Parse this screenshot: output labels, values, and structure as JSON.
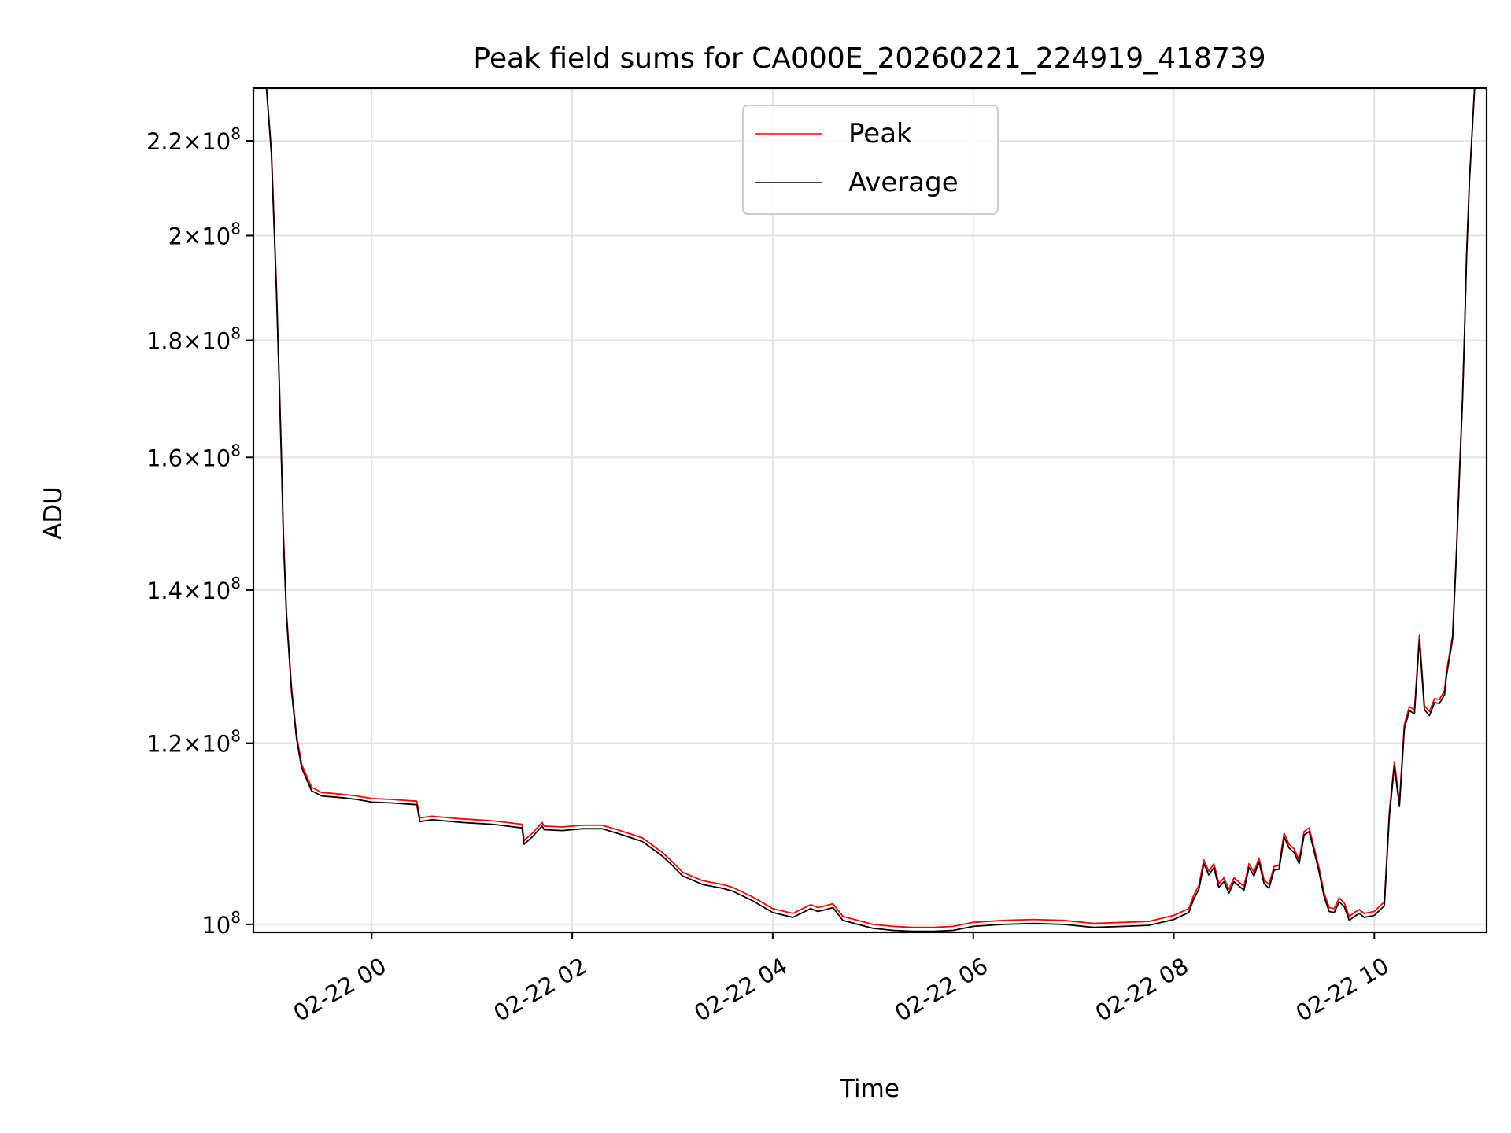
{
  "chart_data": {
    "type": "line",
    "title": "Peak field sums for CA000E_20260221_224919_418739",
    "xlabel": "Time",
    "ylabel": "ADU",
    "x_unit": "hours since 02-22 00:00",
    "xlim": [
      -1.18,
      11.12
    ],
    "ylim": [
      99200000,
      232000000
    ],
    "y_scale": "log",
    "grid": true,
    "legend_position": "upper center",
    "x_ticks": [
      {
        "value": 0,
        "label": "02-22 00"
      },
      {
        "value": 2,
        "label": "02-22 02"
      },
      {
        "value": 4,
        "label": "02-22 04"
      },
      {
        "value": 6,
        "label": "02-22 06"
      },
      {
        "value": 8,
        "label": "02-22 08"
      },
      {
        "value": 10,
        "label": "02-22 10"
      }
    ],
    "y_ticks": [
      {
        "value": 100000000,
        "mantissa": "",
        "exponent": "8"
      },
      {
        "value": 120000000,
        "mantissa": "1.2",
        "exponent": "8"
      },
      {
        "value": 140000000,
        "mantissa": "1.4",
        "exponent": "8"
      },
      {
        "value": 160000000,
        "mantissa": "1.6",
        "exponent": "8"
      },
      {
        "value": 180000000,
        "mantissa": "1.8",
        "exponent": "8"
      },
      {
        "value": 200000000,
        "mantissa": "2",
        "exponent": "8"
      },
      {
        "value": 220000000,
        "mantissa": "2.2",
        "exponent": "8"
      }
    ],
    "series": [
      {
        "name": "Peak",
        "color": "#ff0000",
        "x": [
          -1.18,
          -1.05,
          -1.0,
          -0.95,
          -0.92,
          -0.9,
          -0.88,
          -0.85,
          -0.8,
          -0.75,
          -0.7,
          -0.6,
          -0.5,
          -0.4,
          -0.3,
          -0.15,
          0.0,
          0.2,
          0.45,
          0.48,
          0.6,
          0.9,
          1.2,
          1.5,
          1.52,
          1.6,
          1.7,
          1.72,
          1.9,
          2.1,
          2.3,
          2.45,
          2.7,
          2.9,
          3.0,
          3.1,
          3.3,
          3.5,
          3.6,
          3.8,
          4.0,
          4.2,
          4.38,
          4.45,
          4.6,
          4.7,
          4.85,
          5.0,
          5.2,
          5.4,
          5.6,
          5.8,
          6.0,
          6.3,
          6.6,
          6.9,
          7.2,
          7.5,
          7.75,
          8.0,
          8.15,
          8.2,
          8.25,
          8.3,
          8.35,
          8.4,
          8.45,
          8.5,
          8.55,
          8.6,
          8.7,
          8.75,
          8.8,
          8.85,
          8.9,
          8.95,
          9.0,
          9.05,
          9.1,
          9.15,
          9.2,
          9.25,
          9.3,
          9.35,
          9.4,
          9.45,
          9.5,
          9.55,
          9.6,
          9.65,
          9.7,
          9.75,
          9.8,
          9.85,
          9.9,
          10.0,
          10.1,
          10.15,
          10.2,
          10.25,
          10.3,
          10.35,
          10.4,
          10.45,
          10.5,
          10.55,
          10.6,
          10.65,
          10.7,
          10.72,
          10.78,
          10.82,
          10.85,
          10.88,
          10.9,
          10.92,
          10.95,
          11.0,
          11.12
        ],
        "values": [
          232000000,
          232000000,
          218000000,
          190000000,
          172000000,
          160000000,
          148000000,
          137000000,
          127000000,
          121000000,
          117500000,
          114800000,
          114200000,
          114100000,
          114000000,
          113800000,
          113500000,
          113400000,
          113200000,
          111300000,
          111500000,
          111200000,
          111000000,
          110600000,
          108800000,
          109600000,
          110800000,
          110400000,
          110300000,
          110500000,
          110500000,
          110000000,
          109100000,
          107500000,
          106500000,
          105400000,
          104500000,
          104100000,
          103800000,
          102800000,
          101600000,
          101100000,
          102000000,
          101700000,
          102100000,
          100800000,
          100400000,
          100000000,
          99800000,
          99700000,
          99700000,
          99800000,
          100200000,
          100400000,
          100500000,
          100400000,
          100100000,
          100200000,
          100300000,
          100900000,
          101600000,
          103000000,
          104000000,
          106700000,
          105500000,
          106300000,
          104200000,
          104800000,
          103600000,
          104800000,
          103900000,
          106300000,
          105400000,
          106900000,
          104600000,
          104100000,
          106000000,
          106100000,
          109600000,
          108400000,
          107900000,
          106700000,
          109800000,
          110200000,
          108000000,
          105800000,
          103200000,
          101700000,
          101600000,
          102700000,
          102200000,
          100800000,
          101200000,
          101500000,
          101100000,
          101300000,
          102300000,
          112000000,
          117800000,
          113100000,
          122300000,
          124500000,
          124100000,
          133800000,
          124600000,
          123900000,
          125500000,
          125400000,
          126500000,
          128900000,
          133700000,
          146000000,
          158000000,
          170000000,
          182000000,
          196000000,
          212000000,
          232000000,
          232000000
        ]
      },
      {
        "name": "Average",
        "color": "#000000",
        "x": [
          -1.18,
          -1.05,
          -1.0,
          -0.95,
          -0.92,
          -0.9,
          -0.88,
          -0.85,
          -0.8,
          -0.75,
          -0.7,
          -0.6,
          -0.5,
          -0.4,
          -0.3,
          -0.15,
          0.0,
          0.2,
          0.45,
          0.48,
          0.6,
          0.9,
          1.2,
          1.5,
          1.52,
          1.6,
          1.7,
          1.72,
          1.9,
          2.1,
          2.3,
          2.45,
          2.7,
          2.9,
          3.0,
          3.1,
          3.3,
          3.5,
          3.6,
          3.8,
          4.0,
          4.2,
          4.38,
          4.45,
          4.6,
          4.7,
          4.85,
          5.0,
          5.2,
          5.4,
          5.6,
          5.8,
          6.0,
          6.3,
          6.6,
          6.9,
          7.2,
          7.5,
          7.75,
          8.0,
          8.15,
          8.2,
          8.25,
          8.3,
          8.35,
          8.4,
          8.45,
          8.5,
          8.55,
          8.6,
          8.7,
          8.75,
          8.8,
          8.85,
          8.9,
          8.95,
          9.0,
          9.05,
          9.1,
          9.15,
          9.2,
          9.25,
          9.3,
          9.35,
          9.4,
          9.45,
          9.5,
          9.55,
          9.6,
          9.65,
          9.7,
          9.75,
          9.8,
          9.85,
          9.9,
          10.0,
          10.1,
          10.15,
          10.2,
          10.25,
          10.3,
          10.35,
          10.4,
          10.45,
          10.5,
          10.55,
          10.6,
          10.65,
          10.7,
          10.72,
          10.78,
          10.82,
          10.85,
          10.88,
          10.9,
          10.92,
          10.95,
          11.0,
          11.12
        ],
        "values": [
          232000000,
          232000000,
          217000000,
          189000000,
          171000000,
          159000000,
          147000000,
          136500000,
          126500000,
          120600000,
          117100000,
          114400000,
          113800000,
          113700000,
          113600000,
          113400000,
          113100000,
          113000000,
          112800000,
          110900000,
          111100000,
          110800000,
          110600000,
          110200000,
          108400000,
          109200000,
          110400000,
          110000000,
          109900000,
          110100000,
          110100000,
          109600000,
          108700000,
          107100000,
          106100000,
          105000000,
          104100000,
          103700000,
          103400000,
          102400000,
          101200000,
          100700000,
          101600000,
          101300000,
          101700000,
          100400000,
          100000000,
          99600000,
          99400000,
          99300000,
          99300000,
          99400000,
          99800000,
          100000000,
          100100000,
          100000000,
          99700000,
          99800000,
          99900000,
          100500000,
          101200000,
          102600000,
          103600000,
          106300000,
          105100000,
          105900000,
          103800000,
          104400000,
          103200000,
          104400000,
          103500000,
          105900000,
          105000000,
          106500000,
          104200000,
          103700000,
          105600000,
          105700000,
          109200000,
          108000000,
          107500000,
          106300000,
          109400000,
          109800000,
          107600000,
          105400000,
          102800000,
          101300000,
          101200000,
          102300000,
          101800000,
          100400000,
          100800000,
          101100000,
          100700000,
          100900000,
          101900000,
          111500000,
          117300000,
          112600000,
          121800000,
          124000000,
          123600000,
          133200000,
          124100000,
          123400000,
          125000000,
          124900000,
          126000000,
          128400000,
          133200000,
          145500000,
          157500000,
          169500000,
          181500000,
          195500000,
          211500000,
          232000000,
          232000000
        ]
      }
    ]
  }
}
